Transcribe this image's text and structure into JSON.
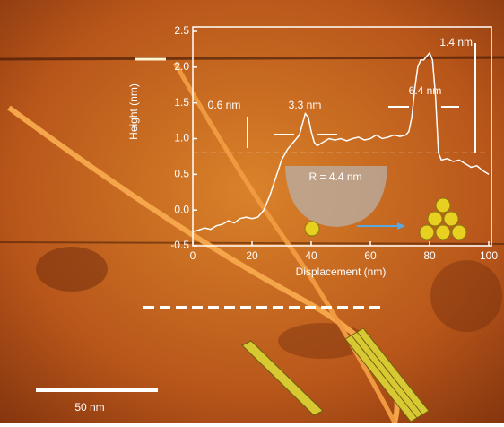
{
  "chart_data": {
    "type": "line",
    "x_label": "Displacement (nm)",
    "y_label": "Height (nm)",
    "x": [
      0,
      2,
      4,
      6,
      8,
      10,
      12,
      14,
      16,
      18,
      20,
      22,
      24,
      26,
      28,
      30,
      32,
      34,
      36,
      37,
      38,
      39,
      40,
      41,
      42,
      44,
      46,
      48,
      50,
      52,
      54,
      56,
      58,
      60,
      62,
      64,
      66,
      68,
      70,
      72,
      73,
      74,
      75,
      76,
      77,
      78,
      79,
      80,
      81,
      82,
      83,
      84,
      86,
      88,
      90,
      92,
      94,
      96,
      98,
      100
    ],
    "values": [
      -0.3,
      -0.28,
      -0.25,
      -0.27,
      -0.22,
      -0.2,
      -0.15,
      -0.18,
      -0.12,
      -0.1,
      -0.12,
      -0.1,
      0.0,
      0.2,
      0.45,
      0.7,
      0.85,
      0.95,
      1.05,
      1.2,
      1.35,
      1.3,
      1.1,
      0.95,
      0.9,
      0.95,
      1.0,
      0.98,
      1.0,
      0.97,
      1.0,
      1.02,
      0.98,
      1.0,
      1.05,
      1.0,
      1.02,
      1.05,
      1.03,
      1.05,
      1.1,
      1.3,
      1.7,
      2.0,
      2.1,
      2.1,
      2.15,
      2.2,
      2.1,
      1.6,
      0.8,
      0.7,
      0.72,
      0.68,
      0.7,
      0.65,
      0.6,
      0.62,
      0.55,
      0.5
    ],
    "color": "#ffffff",
    "reference_line": 0.8,
    "xlim": [
      0,
      100
    ],
    "xticks": [
      0,
      20,
      40,
      60,
      80,
      100
    ],
    "ylim": [
      -0.5,
      2.5
    ],
    "yticks": [
      -0.5,
      {
        "value": 0,
        "label": "0.0"
      },
      0.5,
      {
        "value": 1,
        "label": "1.0"
      },
      1.5,
      {
        "value": 2,
        "label": "2.0"
      },
      2.5
    ],
    "annotations": [
      "0.6 nm",
      "3.3 nm",
      "6.4 nm",
      "1.4 nm",
      "R = 4.4 nm",
      "50 nm"
    ]
  }
}
